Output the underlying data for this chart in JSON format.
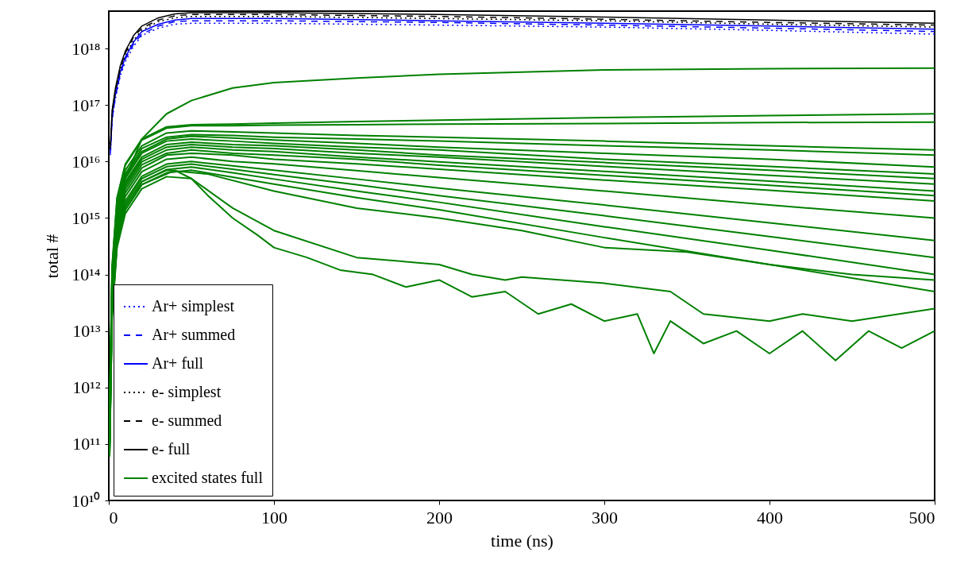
{
  "chart_data": {
    "type": "line",
    "xlabel": "time (ns)",
    "ylabel": "total #",
    "log": "y",
    "grid": false,
    "legend": "bottom left",
    "xlim": [
      0,
      500
    ],
    "xticks": [
      0,
      100,
      200,
      300,
      400,
      500
    ],
    "ylim": [
      10000000000.0,
      4.6e+18
    ],
    "yticks": [
      {
        "value": 10000000000.0,
        "label": "10¹⁰"
      },
      {
        "value": 100000000000.0,
        "label": "10¹¹"
      },
      {
        "value": 1000000000000.0,
        "label": "10¹²"
      },
      {
        "value": 10000000000000.0,
        "label": "10¹³"
      },
      {
        "value": 100000000000000.0,
        "label": "10¹⁴"
      },
      {
        "value": 1000000000000000.0,
        "label": "10¹⁵"
      },
      {
        "value": 1e+16,
        "label": "10¹⁶"
      },
      {
        "value": 1e+17,
        "label": "10¹⁷"
      },
      {
        "value": 1e+18,
        "label": "10¹⁸"
      }
    ],
    "x": [
      0.5,
      2,
      5,
      10,
      20,
      35,
      50,
      75,
      100,
      150,
      200,
      300,
      400,
      500
    ],
    "series": [
      {
        "name": "Ar+ simplest",
        "color": "#0000ff",
        "line_style": "dotted",
        "x": [
          1,
          2,
          4,
          7,
          10,
          15,
          20,
          30,
          40,
          50,
          100,
          200,
          300,
          400,
          500
        ],
        "values": [
          1.3e+16,
          5.3e+16,
          1.3e+17,
          3.3e+17,
          5.9e+17,
          1.1e+18,
          1.7e+18,
          2.3e+18,
          2.7e+18,
          2.8e+18,
          2.8e+18,
          2.6e+18,
          2.4e+18,
          2.1e+18,
          1.8e+18
        ]
      },
      {
        "name": "Ar+ summed",
        "color": "#0000ff",
        "line_style": "dashed",
        "x": [
          1,
          2,
          4,
          7,
          10,
          15,
          20,
          30,
          40,
          50,
          100,
          200,
          300,
          400,
          500
        ],
        "values": [
          1.4e+16,
          5.8e+16,
          1.4e+17,
          3.6e+17,
          6.5e+17,
          1.2e+18,
          1.8e+18,
          2.5e+18,
          3e+18,
          3.1e+18,
          3.1e+18,
          2.9e+18,
          2.6e+18,
          2.3e+18,
          2e+18
        ]
      },
      {
        "name": "Ar+ full",
        "color": "#0000ff",
        "line_style": "solid",
        "x": [
          1,
          2,
          4,
          7,
          10,
          15,
          20,
          30,
          40,
          50,
          100,
          200,
          300,
          400,
          500
        ],
        "values": [
          1.6e+16,
          6.2e+16,
          1.6e+17,
          3.9e+17,
          7e+17,
          1.3e+18,
          2e+18,
          2.7e+18,
          3.2e+18,
          3.4e+18,
          3.4e+18,
          3.1e+18,
          2.8e+18,
          2.5e+18,
          2.2e+18
        ]
      },
      {
        "name": "e- simplest",
        "color": "#000000",
        "line_style": "dotted",
        "x": [
          1,
          2,
          4,
          7,
          10,
          15,
          20,
          30,
          40,
          50,
          100,
          200,
          300,
          400,
          500
        ],
        "values": [
          1.7e+16,
          6.8e+16,
          1.7e+17,
          4.3e+17,
          7.7e+17,
          1.4e+18,
          2.1e+18,
          3e+18,
          3.5e+18,
          3.7e+18,
          3.7e+18,
          3.4e+18,
          3.1e+18,
          2.7e+18,
          2.4e+18
        ]
      },
      {
        "name": "e- summed",
        "color": "#000000",
        "line_style": "dashed",
        "x": [
          1,
          2,
          4,
          7,
          10,
          15,
          20,
          30,
          40,
          50,
          100,
          200,
          300,
          400,
          500
        ],
        "values": [
          1.8e+16,
          7.4e+16,
          1.8e+17,
          4.6e+17,
          8.3e+17,
          1.6e+18,
          2.3e+18,
          3.2e+18,
          3.8e+18,
          4e+18,
          4e+18,
          3.7e+18,
          3.3e+18,
          2.9e+18,
          2.6e+18
        ]
      },
      {
        "name": "e- full",
        "color": "#000000",
        "line_style": "solid",
        "x": [
          1,
          2,
          4,
          7,
          10,
          15,
          20,
          30,
          40,
          50,
          100,
          200,
          300,
          400,
          500
        ],
        "values": [
          2e+16,
          8e+16,
          2e+17,
          5e+17,
          9e+17,
          1.7e+18,
          2.5e+18,
          3.5e+18,
          4.1e+18,
          4.3e+18,
          4.3e+18,
          4e+18,
          3.6e+18,
          3.2e+18,
          2.8e+18
        ]
      },
      {
        "name": "excited states full",
        "color": "#008000",
        "line_style": "solid",
        "values": [
          100000000000.0,
          50000000000000.0,
          1000000000000000.0,
          5000000000000000.0,
          2.5e+16,
          7e+16,
          1.2e+17,
          2e+17,
          2.5e+17,
          3e+17,
          3.5e+17,
          4.2e+17,
          4.4e+17,
          4.5e+17
        ]
      },
      {
        "color": "#008000",
        "line_style": "solid",
        "values": [
          450000000000.0,
          140000000000000.0,
          2300000000000000.0,
          9000000000000000.0,
          2.5e+16,
          4.1e+16,
          4.5e+16,
          4.6e+16,
          4.8e+16,
          5.1e+16,
          5.4e+16,
          6e+16,
          6.5e+16,
          7e+16
        ]
      },
      {
        "color": "#008000",
        "line_style": "solid",
        "values": [
          430000000000.0,
          130000000000000.0,
          2200000000000000.0,
          8600000000000000.0,
          2.4e+16,
          3.9e+16,
          4.3e+16,
          4.3e+16,
          4.4e+16,
          4.5e+16,
          4.6e+16,
          4.7e+16,
          4.9e+16,
          5e+16
        ]
      },
      {
        "color": "#008000",
        "line_style": "solid",
        "values": [
          350000000000.0,
          110000000000000.0,
          1800000000000000.0,
          7000000000000000.0,
          1.9e+16,
          3.2e+16,
          3.5e+16,
          3.35e+16,
          3.2e+16,
          2.9e+16,
          2.7e+16,
          2.3e+16,
          1.9e+16,
          1.6e+16
        ]
      },
      {
        "color": "#008000",
        "line_style": "solid",
        "values": [
          300000000000.0,
          90000000000000.0,
          1500000000000000.0,
          6000000000000000.0,
          1.7e+16,
          2.7e+16,
          3e+16,
          2.9e+16,
          2.7e+16,
          2.5e+16,
          2.3e+16,
          1.9e+16,
          1.6e+16,
          1.3e+16
        ]
      },
      {
        "color": "#008000",
        "line_style": "solid",
        "values": [
          280000000000.0,
          84000000000000.0,
          1400000000000000.0,
          5600000000000000.0,
          1.5e+16,
          2.5e+16,
          2.8e+16,
          2.6e+16,
          2.4e+16,
          2.1e+16,
          1.8e+16,
          1.4e+16,
          1.1e+16,
          8000000000000000.0
        ]
      },
      {
        "color": "#008000",
        "line_style": "solid",
        "values": [
          250000000000.0,
          75000000000000.0,
          1300000000000000.0,
          5000000000000000.0,
          1.4e+16,
          2.3e+16,
          2.5e+16,
          2.3e+16,
          2.1e+16,
          1.8e+16,
          1.6e+16,
          1.1e+16,
          8200000000000000.0,
          6000000000000000.0
        ]
      },
      {
        "color": "#008000",
        "line_style": "solid",
        "values": [
          220000000000.0,
          66000000000000.0,
          1100000000000000.0,
          4400000000000000.0,
          1.2e+16,
          2e+16,
          2.2e+16,
          2e+16,
          1.9e+16,
          1.6e+16,
          1.3e+16,
          9600000000000000.0,
          7000000000000000.0,
          5000000000000000.0
        ]
      },
      {
        "color": "#008000",
        "line_style": "solid",
        "values": [
          200000000000.0,
          60000000000000.0,
          1000000000000000.0,
          4000000000000000.0,
          1.1e+16,
          1.8e+16,
          2e+16,
          1.8e+16,
          1.7e+16,
          1.4e+16,
          1.2e+16,
          8200000000000000.0,
          5700000000000000.0,
          4000000000000000.0
        ]
      },
      {
        "color": "#008000",
        "line_style": "solid",
        "values": [
          180000000000.0,
          54000000000000.0,
          900000000000000.0,
          3600000000000000.0,
          9900000000000000.0,
          1.6e+16,
          1.8e+16,
          1.6e+16,
          1.5e+16,
          1.2e+16,
          9900000000000000.0,
          6700000000000000.0,
          4500000000000000.0,
          3000000000000000.0
        ]
      },
      {
        "color": "#008000",
        "line_style": "solid",
        "values": [
          160000000000.0,
          48000000000000.0,
          800000000000000.0,
          3200000000000000.0,
          8800000000000000.0,
          1.4e+16,
          1.6e+16,
          1.4e+16,
          1.3e+16,
          1.1e+16,
          8600000000000000.0,
          5700000000000000.0,
          3800000000000000.0,
          2500000000000000.0
        ]
      },
      {
        "color": "#008000",
        "line_style": "solid",
        "values": [
          140000000000.0,
          42000000000000.0,
          700000000000000.0,
          2800000000000000.0,
          7700000000000000.0,
          1.3e+16,
          1.4e+16,
          1.3e+16,
          1.1e+16,
          9100000000000000.0,
          7300000000000000.0,
          4700000000000000.0,
          3100000000000000.0,
          2000000000000000.0
        ]
      },
      {
        "color": "#008000",
        "line_style": "solid",
        "values": [
          120000000000.0,
          36000000000000.0,
          600000000000000.0,
          2400000000000000.0,
          6600000000000000.0,
          1.1e+16,
          1.2e+16,
          1e+16,
          9100000000000000.0,
          6900000000000000.0,
          5200000000000000.0,
          3000000000000000.0,
          1700000000000000.0,
          1000000000000000.0
        ]
      },
      {
        "color": "#008000",
        "line_style": "solid",
        "values": [
          100000000000.0,
          30000000000000.0,
          500000000000000.0,
          2000000000000000.0,
          5500000000000000.0,
          9000000000000000.0,
          1e+16,
          8400000000000000.0,
          7000000000000000.0,
          4900000000000000.0,
          3400000000000000.0,
          1700000000000000.0,
          820000000000000.0,
          400000000000000.0
        ]
      },
      {
        "color": "#008000",
        "line_style": "solid",
        "values": [
          90000000000.0,
          27000000000000.0,
          450000000000000.0,
          1800000000000000.0,
          5000000000000000.0,
          8100000000000000.0,
          9000000000000000.0,
          7300000000000000.0,
          5900000000000000.0,
          3900000000000000.0,
          2500000000000000.0,
          1100000000000000.0,
          470000000000000.0,
          200000000000000.0
        ]
      },
      {
        "color": "#008000",
        "line_style": "solid",
        "values": [
          80000000000.0,
          24000000000000.0,
          400000000000000.0,
          1600000000000000.0,
          4400000000000000.0,
          7200000000000000.0,
          8000000000000000.0,
          6300000000000000.0,
          4900000000000000.0,
          3000000000000000.0,
          1900000000000000.0,
          700000000000000.0,
          270000000000000.0,
          100000000000000.0
        ]
      },
      {
        "color": "#008000",
        "line_style": "solid",
        "values": [
          70000000000.0,
          21000000000000.0,
          350000000000000.0,
          1400000000000000.0,
          3900000000000000.0,
          6300000000000000.0,
          7000000000000000.0,
          5300000000000000.0,
          4000000000000000.0,
          2300000000000000.0,
          1400000000000000.0,
          450000000000000.0,
          150000000000000.0,
          50000000000000.0
        ]
      },
      {
        "color": "#008000",
        "line_style": "solid",
        "x": [
          0.5,
          2,
          5,
          10,
          20,
          35,
          40,
          50,
          60,
          75,
          90,
          100,
          120,
          140,
          160,
          180,
          200,
          220,
          240,
          260,
          280,
          300,
          320,
          330,
          340,
          360,
          380,
          400,
          420,
          440,
          460,
          480,
          500
        ],
        "values": [
          70000000000.0,
          20000000000000.0,
          350000000000000.0,
          1400000000000000.0,
          3900000000000000.0,
          6000000000000000.0,
          7000000000000000.0,
          5000000000000000.0,
          2500000000000000.0,
          1000000000000000.0,
          500000000000000.0,
          300000000000000.0,
          200000000000000.0,
          120000000000000.0,
          100000000000000.0,
          60000000000000.0,
          80000000000000.0,
          40000000000000.0,
          50000000000000.0,
          20000000000000.0,
          30000000000000.0,
          15000000000000.0,
          20000000000000.0,
          4000000000000.0,
          15000000000000.0,
          6000000000000.0,
          10000000000000.0,
          4000000000000.0,
          10000000000000.0,
          3000000000000.0,
          10000000000000.0,
          5000000000000.0,
          10000000000000.0
        ]
      },
      {
        "color": "#008000",
        "line_style": "solid",
        "x": [
          0.5,
          2,
          5,
          10,
          20,
          35,
          50,
          75,
          100,
          150,
          200,
          220,
          240,
          250,
          300,
          340,
          360,
          400,
          420,
          450,
          500
        ],
        "values": [
          60000000000.0,
          18000000000000.0,
          300000000000000.0,
          1200000000000000.0,
          3300000000000000.0,
          5400000000000000.0,
          5000000000000000.0,
          1500000000000000.0,
          600000000000000.0,
          200000000000000.0,
          150000000000000.0,
          100000000000000.0,
          80000000000000.0,
          90000000000000.0,
          70000000000000.0,
          50000000000000.0,
          20000000000000.0,
          15000000000000.0,
          20000000000000.0,
          15000000000000.0,
          25000000000000.0
        ]
      },
      {
        "color": "#008000",
        "line_style": "solid",
        "x": [
          0.5,
          2,
          5,
          10,
          20,
          35,
          60,
          100,
          150,
          200,
          250,
          300,
          350,
          400,
          450,
          500
        ],
        "values": [
          80000000000.0,
          24000000000000.0,
          400000000000000.0,
          1600000000000000.0,
          4400000000000000.0,
          7000000000000000.0,
          6000000000000000.0,
          3000000000000000.0,
          1500000000000000.0,
          1000000000000000.0,
          600000000000000.0,
          300000000000000.0,
          250000000000000.0,
          150000000000000.0,
          100000000000000.0,
          80000000000000.0
        ]
      }
    ]
  }
}
